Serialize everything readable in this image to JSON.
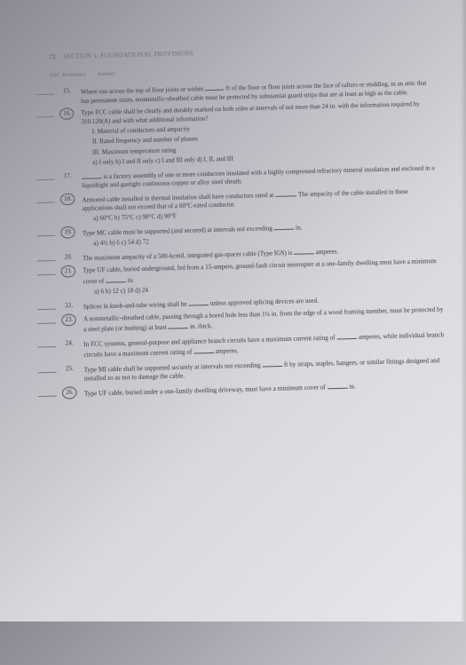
{
  "header": {
    "page_number": "72",
    "section": "SECTION 1: FOUNDATIONAL PROVISIONS"
  },
  "ref_row": {
    "left": "NEC Reference",
    "right": "Answer"
  },
  "questions": [
    {
      "num": "15.",
      "text_parts": [
        "Where run across the top of floor joists or within ",
        " ft of the floor or floor joists across the face of rafters or studding, in an attic that has permanent stairs, nonmetallic-sheathed cable must be protected by substantial guard strips that are at least as high as the cable."
      ]
    },
    {
      "num": "16.",
      "circled": true,
      "text_parts": [
        "Type FCC cable shall be clearly and durably marked on both sides at intervals of not more than 24 in. with the information required by 310.120(A) and with what additional information?"
      ],
      "roman": [
        "I. Material of conductors and ampacity",
        "II. Rated frequency and number of phases",
        "III. Maximum temperature rating"
      ],
      "opts": "a) I only   b) I and II only   c) I and III only   d) I, II, and III"
    },
    {
      "num": "17.",
      "text_parts": [
        "",
        " is a factory assembly of one or more conductors insulated with a highly compressed refractory mineral insulation and enclosed in a liquidtight and gastight continuous copper or alloy steel sheath."
      ]
    },
    {
      "num": "18.",
      "circled": true,
      "text_parts": [
        "Armored cable installed in thermal insulation shall have conductors rated at ",
        ". The ampacity of the cable installed in these applications shall not exceed that of a 60°C-rated conductor."
      ],
      "opts": "a) 60°C   b) 75°C   c) 90°C   d) 90°F"
    },
    {
      "num": "19.",
      "circled": true,
      "text_parts": [
        "Type MC cable must be supported (and secured) at intervals not exceeding ",
        " in."
      ],
      "opts": "a) 4½   b) 6   c) 54   d) 72"
    },
    {
      "num": "20.",
      "text_parts": [
        "The maximum ampacity of a 500-kcmil, integrated gas-spacer cable (Type IGS) is ",
        " amperes."
      ]
    },
    {
      "num": "21.",
      "circled": true,
      "text_parts": [
        "Type UF cable, buried underground, fed from a 15-ampere, ground-fault circuit interrupter at a one-family dwelling must have a minimum cover of ",
        " in."
      ],
      "opts": "a) 6   b) 12   c) 18   d) 24"
    },
    {
      "num": "22.",
      "text_parts": [
        "Splices in knob-and-tube wiring shall be ",
        " unless approved splicing devices are used."
      ]
    },
    {
      "num": "23.",
      "circled": true,
      "text_parts": [
        "A nonmetallic-sheathed cable, passing through a bored hole less than 1¼ in. from the edge of a wood framing member, must be protected by a steel plate (or bushing) at least ",
        " in. thick."
      ]
    },
    {
      "num": "24.",
      "text_parts": [
        "In FCC systems, general-purpose and appliance branch circuits have a maximum current rating of ",
        " amperes, while individual branch circuits have a maximum current rating of ",
        " amperes."
      ]
    },
    {
      "num": "25.",
      "text_parts": [
        "Type MI cable shall be supported securely at intervals not exceeding ",
        " ft by straps, staples, hangers, or similar fittings designed and installed so as not to damage the cable."
      ]
    },
    {
      "num": "26.",
      "circled": true,
      "text_parts": [
        "Type UF cable, buried under a one-family dwelling driveway, must have a minimum cover of ",
        " in."
      ]
    }
  ]
}
